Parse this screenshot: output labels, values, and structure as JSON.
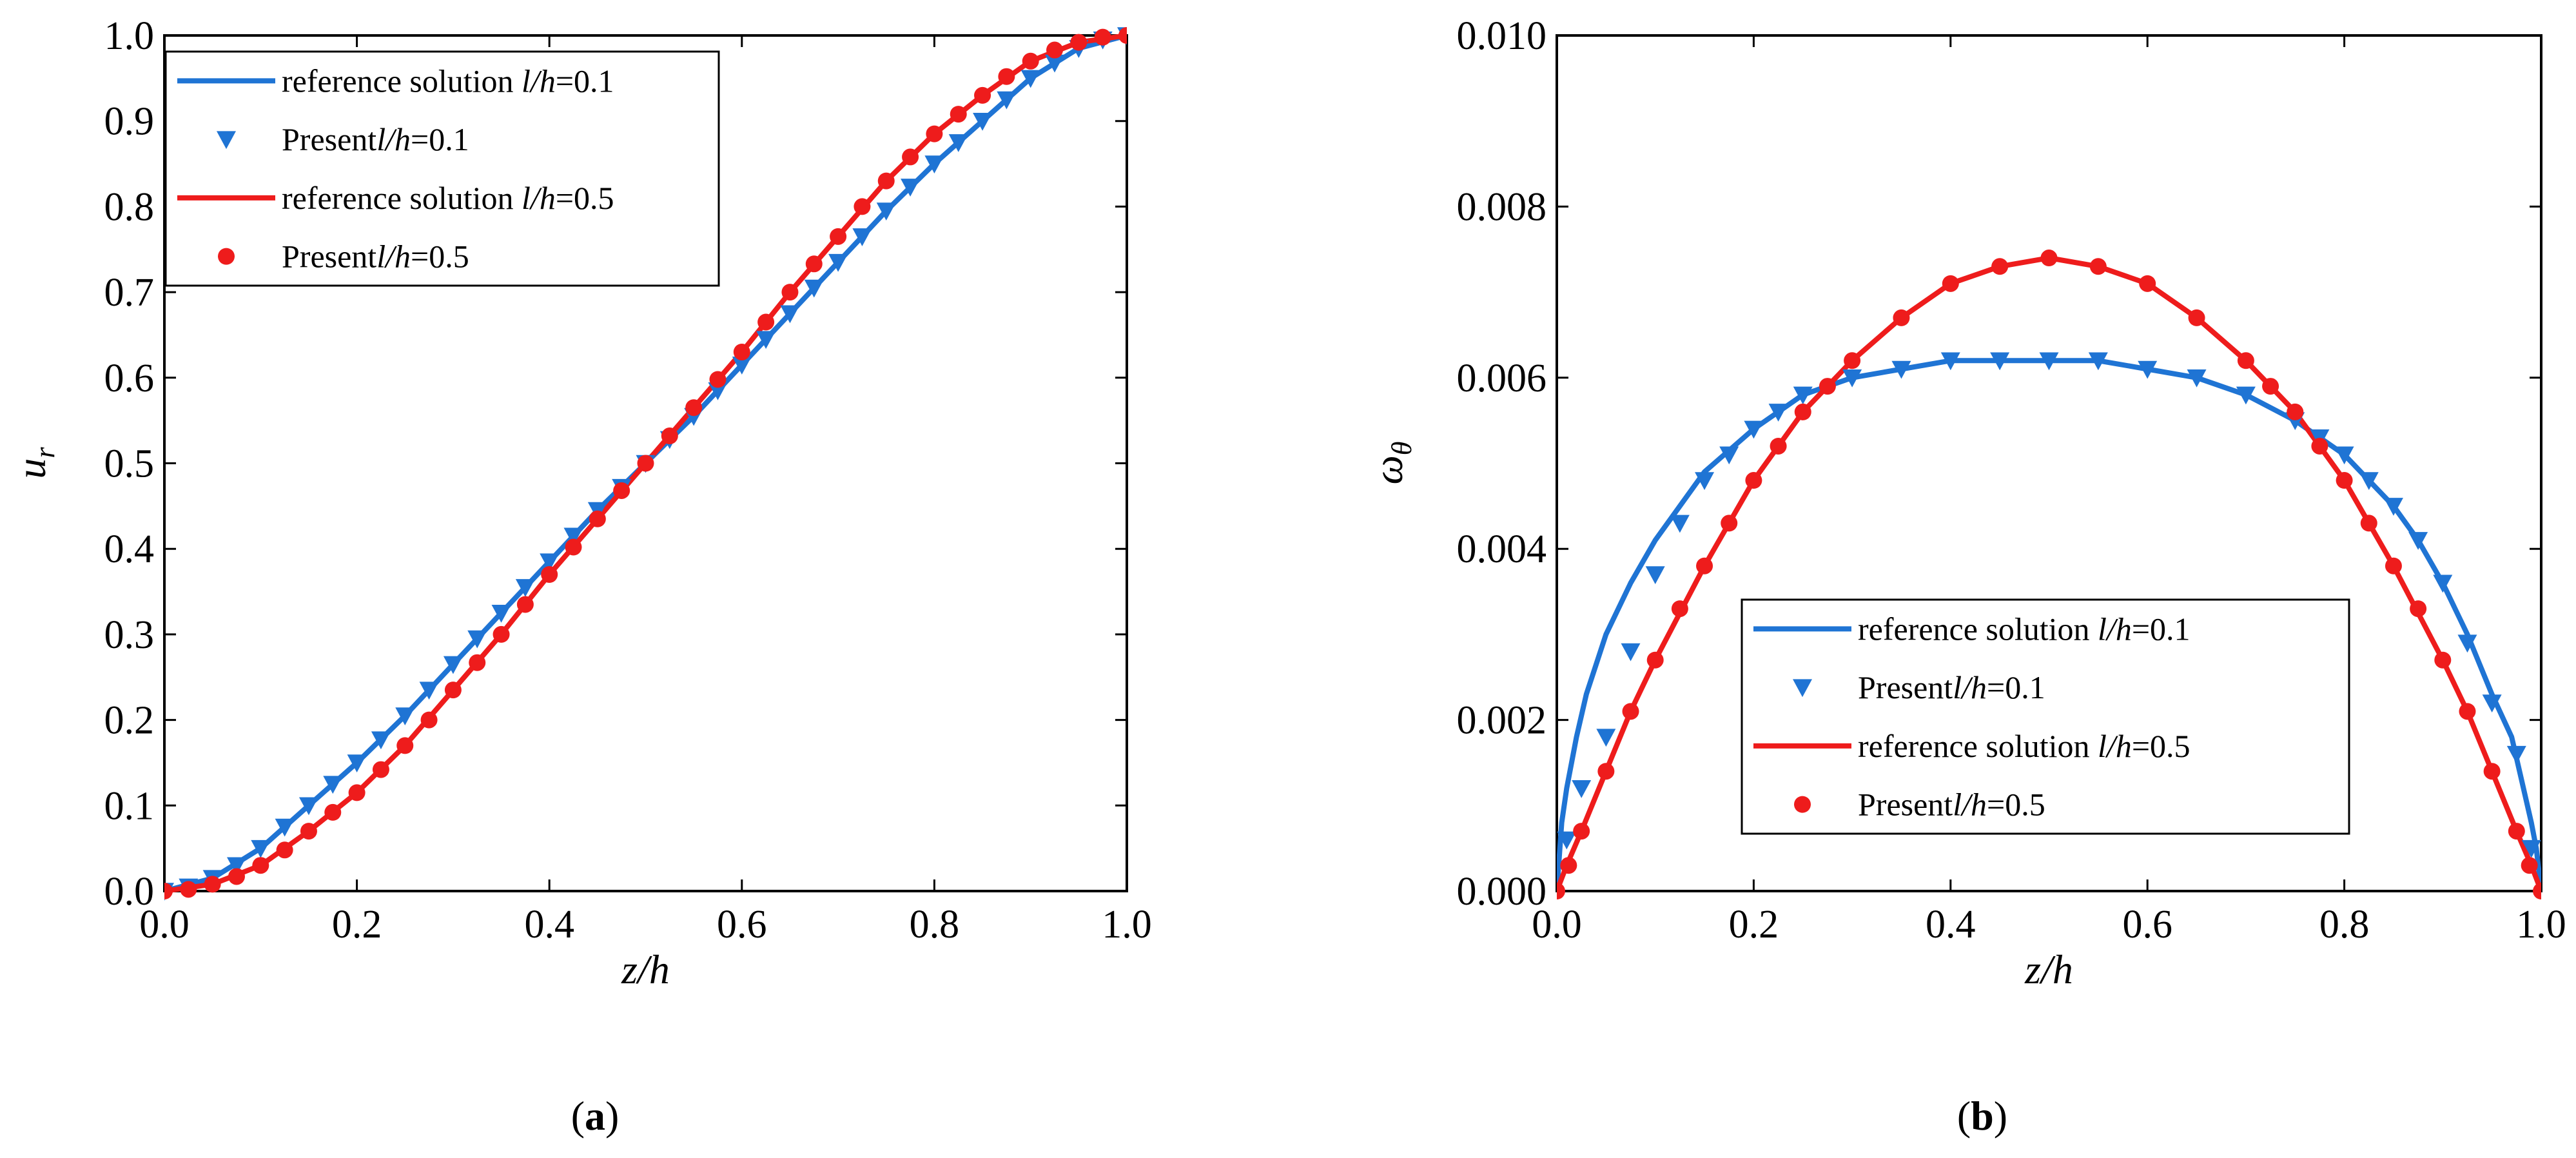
{
  "chart_data": [
    {
      "type": "line",
      "panel_label": "a",
      "xlabel": "z/h",
      "ylabel": {
        "main": "u",
        "sub": "r"
      },
      "xlim": [
        0.0,
        1.0
      ],
      "ylim": [
        0.0,
        1.0
      ],
      "xticks": [
        "0.0",
        "0.2",
        "0.4",
        "0.6",
        "0.8",
        "1.0"
      ],
      "yticks": [
        "0.0",
        "0.1",
        "0.2",
        "0.3",
        "0.4",
        "0.5",
        "0.6",
        "0.7",
        "0.8",
        "0.9",
        "1.0"
      ],
      "legend_position": "top-left",
      "legend": [
        {
          "kind": "line",
          "color": "#1f74d4",
          "label": "reference solution ",
          "param": "l/h",
          "value": "=0.1"
        },
        {
          "kind": "triangle",
          "color": "#1f74d4",
          "label": "Present",
          "param": "l/h",
          "value": "=0.1"
        },
        {
          "kind": "line",
          "color": "#ee1c1c",
          "label": "reference solution ",
          "param": "l/h",
          "value": "=0.5"
        },
        {
          "kind": "circle",
          "color": "#ee1c1c",
          "label": "Present",
          "param": "l/h",
          "value": "=0.5"
        }
      ],
      "series": [
        {
          "name": "reference solution l/h=0.1",
          "color": "#1f74d4",
          "style": "line",
          "x": [
            0.0,
            0.05,
            0.1,
            0.15,
            0.2,
            0.25,
            0.3,
            0.35,
            0.4,
            0.45,
            0.5,
            0.55,
            0.6,
            0.65,
            0.7,
            0.75,
            0.8,
            0.85,
            0.9,
            0.95,
            1.0
          ],
          "y": [
            0.0,
            0.015,
            0.05,
            0.1,
            0.15,
            0.205,
            0.265,
            0.325,
            0.385,
            0.445,
            0.5,
            0.555,
            0.615,
            0.675,
            0.735,
            0.795,
            0.85,
            0.9,
            0.95,
            0.985,
            1.0
          ]
        },
        {
          "name": "Present l/h=0.1",
          "color": "#1f74d4",
          "style": "triangle",
          "x": [
            0.0,
            0.025,
            0.05,
            0.075,
            0.1,
            0.125,
            0.15,
            0.175,
            0.2,
            0.225,
            0.25,
            0.275,
            0.3,
            0.325,
            0.35,
            0.375,
            0.4,
            0.425,
            0.45,
            0.475,
            0.5,
            0.525,
            0.55,
            0.575,
            0.6,
            0.625,
            0.65,
            0.675,
            0.7,
            0.725,
            0.75,
            0.775,
            0.8,
            0.825,
            0.85,
            0.875,
            0.9,
            0.925,
            0.95,
            0.975,
            1.0
          ],
          "y": [
            0.0,
            0.005,
            0.015,
            0.03,
            0.05,
            0.075,
            0.1,
            0.125,
            0.15,
            0.177,
            0.205,
            0.235,
            0.265,
            0.295,
            0.325,
            0.355,
            0.385,
            0.415,
            0.445,
            0.472,
            0.5,
            0.528,
            0.555,
            0.585,
            0.615,
            0.645,
            0.675,
            0.705,
            0.735,
            0.765,
            0.795,
            0.823,
            0.85,
            0.875,
            0.9,
            0.925,
            0.95,
            0.968,
            0.985,
            0.995,
            1.0
          ]
        },
        {
          "name": "reference solution l/h=0.5",
          "color": "#ee1c1c",
          "style": "line",
          "x": [
            0.0,
            0.05,
            0.1,
            0.15,
            0.2,
            0.25,
            0.3,
            0.35,
            0.4,
            0.45,
            0.5,
            0.55,
            0.6,
            0.65,
            0.7,
            0.75,
            0.8,
            0.85,
            0.9,
            0.95,
            1.0
          ],
          "y": [
            0.0,
            0.008,
            0.03,
            0.07,
            0.115,
            0.17,
            0.235,
            0.3,
            0.37,
            0.435,
            0.5,
            0.565,
            0.63,
            0.7,
            0.765,
            0.83,
            0.885,
            0.93,
            0.97,
            0.992,
            1.0
          ]
        },
        {
          "name": "Present l/h=0.5",
          "color": "#ee1c1c",
          "style": "circle",
          "x": [
            0.0,
            0.025,
            0.05,
            0.075,
            0.1,
            0.125,
            0.15,
            0.175,
            0.2,
            0.225,
            0.25,
            0.275,
            0.3,
            0.325,
            0.35,
            0.375,
            0.4,
            0.425,
            0.45,
            0.475,
            0.5,
            0.525,
            0.55,
            0.575,
            0.6,
            0.625,
            0.65,
            0.675,
            0.7,
            0.725,
            0.75,
            0.775,
            0.8,
            0.825,
            0.85,
            0.875,
            0.9,
            0.925,
            0.95,
            0.975,
            1.0
          ],
          "y": [
            0.0,
            0.002,
            0.008,
            0.017,
            0.03,
            0.048,
            0.07,
            0.092,
            0.115,
            0.142,
            0.17,
            0.2,
            0.235,
            0.267,
            0.3,
            0.335,
            0.37,
            0.402,
            0.435,
            0.468,
            0.5,
            0.532,
            0.565,
            0.598,
            0.63,
            0.665,
            0.7,
            0.733,
            0.765,
            0.8,
            0.83,
            0.858,
            0.885,
            0.908,
            0.93,
            0.952,
            0.97,
            0.983,
            0.992,
            0.998,
            1.0
          ]
        }
      ]
    },
    {
      "type": "line",
      "panel_label": "b",
      "xlabel": "z/h",
      "ylabel": {
        "main": "ω",
        "sub": "θ"
      },
      "xlim": [
        0.0,
        1.0
      ],
      "ylim": [
        0.0,
        0.01
      ],
      "xticks": [
        "0.0",
        "0.2",
        "0.4",
        "0.6",
        "0.8",
        "1.0"
      ],
      "yticks": [
        "0.000",
        "0.002",
        "0.004",
        "0.006",
        "0.008",
        "0.010"
      ],
      "legend_position": "lower-center",
      "legend": [
        {
          "kind": "line",
          "color": "#1f74d4",
          "label": "reference solution ",
          "param": "l/h",
          "value": "=0.1"
        },
        {
          "kind": "triangle",
          "color": "#1f74d4",
          "label": "Present",
          "param": "l/h",
          "value": "=0.1"
        },
        {
          "kind": "line",
          "color": "#ee1c1c",
          "label": "reference solution ",
          "param": "l/h",
          "value": "=0.5"
        },
        {
          "kind": "circle",
          "color": "#ee1c1c",
          "label": "Present",
          "param": "l/h",
          "value": "=0.5"
        }
      ],
      "series": [
        {
          "name": "reference solution l/h=0.1",
          "color": "#1f74d4",
          "style": "line",
          "x": [
            0.0,
            0.005,
            0.01,
            0.02,
            0.03,
            0.05,
            0.075,
            0.1,
            0.125,
            0.15,
            0.2,
            0.25,
            0.3,
            0.35,
            0.4,
            0.45,
            0.5,
            0.55,
            0.6,
            0.65,
            0.7,
            0.75,
            0.8,
            0.85,
            0.875,
            0.9,
            0.925,
            0.95,
            0.97,
            0.98,
            0.99,
            0.995,
            1.0
          ],
          "y": [
            0.0,
            0.0008,
            0.0012,
            0.0018,
            0.0023,
            0.003,
            0.0036,
            0.0041,
            0.0045,
            0.0049,
            0.0054,
            0.0058,
            0.006,
            0.0061,
            0.0062,
            0.0062,
            0.0062,
            0.0062,
            0.0061,
            0.006,
            0.0058,
            0.0055,
            0.0051,
            0.0045,
            0.0041,
            0.0036,
            0.003,
            0.0023,
            0.0018,
            0.0013,
            0.0008,
            0.0005,
            0.0
          ]
        },
        {
          "name": "Present l/h=0.1",
          "color": "#1f74d4",
          "style": "triangle",
          "x": [
            0.01,
            0.025,
            0.05,
            0.075,
            0.1,
            0.125,
            0.15,
            0.175,
            0.2,
            0.225,
            0.25,
            0.3,
            0.35,
            0.4,
            0.45,
            0.5,
            0.55,
            0.6,
            0.65,
            0.7,
            0.75,
            0.775,
            0.8,
            0.825,
            0.85,
            0.875,
            0.9,
            0.925,
            0.95,
            0.975,
            0.99
          ],
          "y": [
            0.0006,
            0.0012,
            0.0018,
            0.0028,
            0.0037,
            0.0043,
            0.0048,
            0.0051,
            0.0054,
            0.0056,
            0.0058,
            0.006,
            0.0061,
            0.0062,
            0.0062,
            0.0062,
            0.0062,
            0.0061,
            0.006,
            0.0058,
            0.0055,
            0.0053,
            0.0051,
            0.0048,
            0.0045,
            0.0041,
            0.0036,
            0.0029,
            0.0022,
            0.0016,
            0.0005
          ]
        },
        {
          "name": "reference solution l/h=0.5",
          "color": "#ee1c1c",
          "style": "line",
          "x": [
            0.0,
            0.01,
            0.025,
            0.05,
            0.075,
            0.1,
            0.15,
            0.2,
            0.25,
            0.3,
            0.35,
            0.4,
            0.45,
            0.5,
            0.55,
            0.6,
            0.65,
            0.7,
            0.75,
            0.8,
            0.85,
            0.9,
            0.925,
            0.95,
            0.975,
            0.99,
            1.0
          ],
          "y": [
            0.0,
            0.0003,
            0.0007,
            0.0014,
            0.0021,
            0.0027,
            0.0038,
            0.0048,
            0.0056,
            0.0062,
            0.0067,
            0.0071,
            0.0073,
            0.0074,
            0.0073,
            0.0071,
            0.0067,
            0.0062,
            0.0056,
            0.0048,
            0.0038,
            0.0027,
            0.0021,
            0.0014,
            0.0007,
            0.0003,
            0.0
          ]
        },
        {
          "name": "Present l/h=0.5",
          "color": "#ee1c1c",
          "style": "circle",
          "x": [
            0.0,
            0.012,
            0.025,
            0.05,
            0.075,
            0.1,
            0.125,
            0.15,
            0.175,
            0.2,
            0.225,
            0.25,
            0.275,
            0.3,
            0.35,
            0.4,
            0.45,
            0.5,
            0.55,
            0.6,
            0.65,
            0.7,
            0.725,
            0.75,
            0.775,
            0.8,
            0.825,
            0.85,
            0.875,
            0.9,
            0.925,
            0.95,
            0.975,
            0.988,
            1.0
          ],
          "y": [
            0.0,
            0.0003,
            0.0007,
            0.0014,
            0.0021,
            0.0027,
            0.0033,
            0.0038,
            0.0043,
            0.0048,
            0.0052,
            0.0056,
            0.0059,
            0.0062,
            0.0067,
            0.0071,
            0.0073,
            0.0074,
            0.0073,
            0.0071,
            0.0067,
            0.0062,
            0.0059,
            0.0056,
            0.0052,
            0.0048,
            0.0043,
            0.0038,
            0.0033,
            0.0027,
            0.0021,
            0.0014,
            0.0007,
            0.0003,
            0.0
          ]
        }
      ]
    }
  ]
}
